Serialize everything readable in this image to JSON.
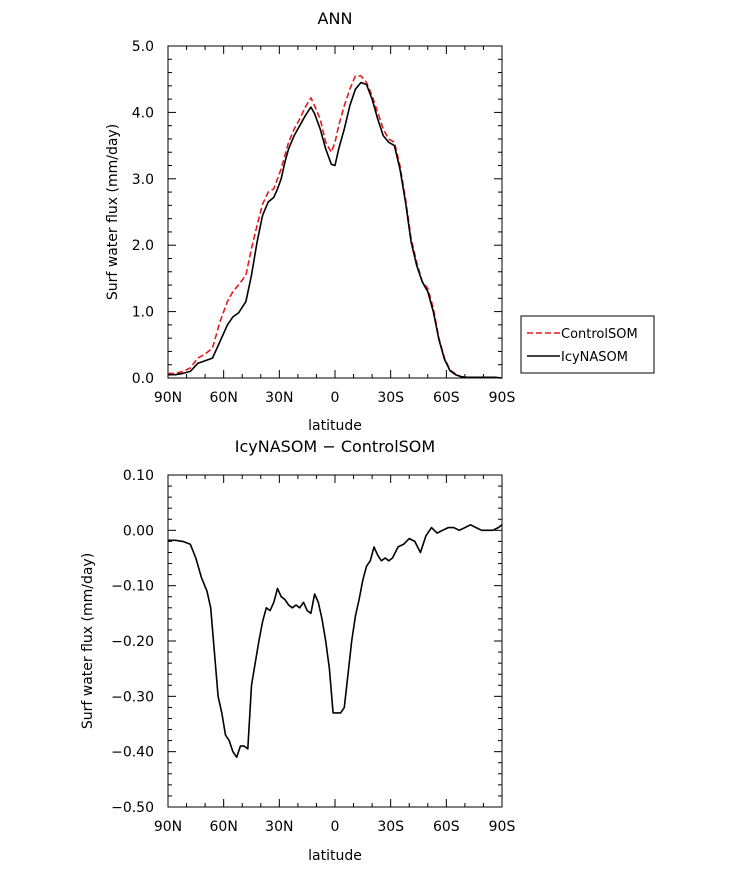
{
  "chart_data": [
    {
      "type": "line",
      "title": "ANN",
      "xlabel": "latitude",
      "ylabel": "Surf water flux (mm/day)",
      "xlim": [
        90,
        -90
      ],
      "ylim": [
        0,
        5
      ],
      "x_ticks": [
        90,
        60,
        30,
        0,
        -30,
        -60,
        -90
      ],
      "x_tick_labels": [
        "90N",
        "60N",
        "30N",
        "0",
        "30S",
        "60S",
        "90S"
      ],
      "y_ticks": [
        0,
        1,
        2,
        3,
        4,
        5
      ],
      "y_tick_labels": [
        "0.0",
        "1.0",
        "2.0",
        "3.0",
        "4.0",
        "5.0"
      ],
      "legend_position": "right",
      "series": [
        {
          "name": "ControlSOM",
          "color": "#e41a1c",
          "dash": true,
          "x": [
            90,
            86,
            82,
            78,
            74,
            70,
            66,
            62,
            58,
            55,
            52,
            48,
            45,
            42,
            39,
            36,
            33,
            31,
            29,
            27,
            25,
            22,
            19,
            16,
            13,
            11,
            8,
            5,
            2,
            0,
            -2,
            -5,
            -8,
            -11,
            -14,
            -17,
            -20,
            -23,
            -26,
            -29,
            -32,
            -35,
            -38,
            -41,
            -44,
            -47,
            -50,
            -53,
            -56,
            -59,
            -62,
            -65,
            -68,
            -71,
            -74,
            -77,
            -80,
            -83,
            -86,
            -90
          ],
          "y": [
            0.07,
            0.07,
            0.1,
            0.15,
            0.3,
            0.36,
            0.45,
            0.85,
            1.15,
            1.3,
            1.4,
            1.55,
            1.95,
            2.3,
            2.62,
            2.8,
            2.85,
            3.0,
            3.15,
            3.35,
            3.55,
            3.75,
            3.9,
            4.08,
            4.22,
            4.1,
            3.9,
            3.55,
            3.4,
            3.55,
            3.8,
            4.1,
            4.35,
            4.55,
            4.55,
            4.45,
            4.25,
            4.0,
            3.75,
            3.6,
            3.55,
            3.2,
            2.7,
            2.1,
            1.75,
            1.45,
            1.35,
            1.05,
            0.6,
            0.3,
            0.12,
            0.06,
            0.02,
            0.01,
            0.01,
            0.01,
            0.01,
            0.01,
            0.01,
            0.0
          ]
        },
        {
          "name": "IcyNASOM",
          "color": "#000000",
          "dash": false,
          "x": [
            90,
            86,
            82,
            78,
            74,
            70,
            66,
            62,
            58,
            55,
            52,
            48,
            45,
            42,
            39,
            36,
            33,
            31,
            29,
            27,
            25,
            22,
            19,
            16,
            13,
            11,
            8,
            5,
            2,
            0,
            -2,
            -5,
            -8,
            -11,
            -14,
            -17,
            -20,
            -23,
            -26,
            -29,
            -32,
            -35,
            -38,
            -41,
            -44,
            -47,
            -50,
            -53,
            -56,
            -59,
            -62,
            -65,
            -68,
            -71,
            -74,
            -77,
            -80,
            -83,
            -86,
            -90
          ],
          "y": [
            0.05,
            0.05,
            0.07,
            0.1,
            0.22,
            0.26,
            0.3,
            0.55,
            0.8,
            0.92,
            0.98,
            1.15,
            1.55,
            2.05,
            2.45,
            2.65,
            2.72,
            2.85,
            3.0,
            3.25,
            3.45,
            3.65,
            3.8,
            3.95,
            4.08,
            3.98,
            3.75,
            3.45,
            3.22,
            3.2,
            3.45,
            3.75,
            4.1,
            4.35,
            4.45,
            4.42,
            4.2,
            3.9,
            3.65,
            3.55,
            3.5,
            3.15,
            2.65,
            2.05,
            1.7,
            1.45,
            1.3,
            1.0,
            0.58,
            0.28,
            0.11,
            0.05,
            0.02,
            0.01,
            0.01,
            0.01,
            0.01,
            0.01,
            0.01,
            0.0
          ]
        }
      ]
    },
    {
      "type": "line",
      "title": "IcyNASOM − ControlSOM",
      "xlabel": "latitude",
      "ylabel": "Surf water flux (mm/day)",
      "xlim": [
        90,
        -90
      ],
      "ylim": [
        -0.5,
        0.1
      ],
      "x_ticks": [
        90,
        60,
        30,
        0,
        -30,
        -60,
        -90
      ],
      "x_tick_labels": [
        "90N",
        "60N",
        "30N",
        "0",
        "30S",
        "60S",
        "90S"
      ],
      "y_ticks": [
        0.1,
        0.0,
        -0.1,
        -0.2,
        -0.3,
        -0.4,
        -0.5
      ],
      "y_tick_labels": [
        "0.10",
        "0.00",
        "−0.10",
        "−0.20",
        "−0.30",
        "−0.40",
        "−0.50"
      ],
      "series": [
        {
          "color": "#000000",
          "x": [
            90,
            86,
            82,
            78,
            75,
            72,
            69,
            67,
            65,
            63,
            61,
            59,
            57,
            55,
            53,
            51,
            49,
            47,
            45,
            43,
            41,
            39,
            37,
            35,
            33,
            31,
            29,
            27,
            25,
            23,
            21,
            19,
            17,
            15,
            13,
            11,
            9,
            7,
            5,
            3,
            1,
            -1,
            -3,
            -5,
            -7,
            -9,
            -11,
            -13,
            -15,
            -17,
            -19,
            -21,
            -23,
            -25,
            -27,
            -29,
            -31,
            -34,
            -37,
            -40,
            -43,
            -46,
            -49,
            -52,
            -55,
            -58,
            -61,
            -64,
            -67,
            -70,
            -73,
            -76,
            -79,
            -82,
            -85,
            -88,
            -90
          ],
          "y": [
            -0.018,
            -0.018,
            -0.02,
            -0.025,
            -0.05,
            -0.085,
            -0.11,
            -0.14,
            -0.22,
            -0.3,
            -0.33,
            -0.37,
            -0.38,
            -0.4,
            -0.41,
            -0.39,
            -0.39,
            -0.395,
            -0.28,
            -0.24,
            -0.2,
            -0.165,
            -0.14,
            -0.145,
            -0.13,
            -0.105,
            -0.12,
            -0.125,
            -0.135,
            -0.14,
            -0.135,
            -0.14,
            -0.13,
            -0.145,
            -0.15,
            -0.115,
            -0.13,
            -0.16,
            -0.2,
            -0.25,
            -0.33,
            -0.33,
            -0.33,
            -0.32,
            -0.26,
            -0.2,
            -0.155,
            -0.125,
            -0.09,
            -0.065,
            -0.055,
            -0.03,
            -0.045,
            -0.055,
            -0.05,
            -0.055,
            -0.05,
            -0.03,
            -0.025,
            -0.015,
            -0.02,
            -0.04,
            -0.01,
            0.005,
            -0.005,
            0.0,
            0.005,
            0.005,
            0.0,
            0.005,
            0.01,
            0.005,
            0.0,
            0.0,
            0.0,
            0.005,
            0.01
          ]
        }
      ]
    }
  ]
}
